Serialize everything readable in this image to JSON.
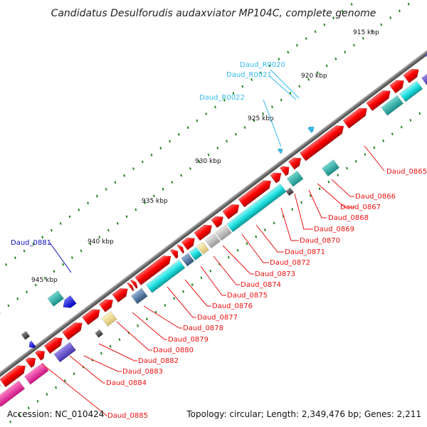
{
  "title": "Candidatus Desulforudis audaxviator MP104C, complete genome",
  "footer": {
    "accession": "Accession: NC_010424",
    "topology": "Topology: circular; Length: 2,349,476 bp; Genes: 2,211"
  },
  "ticks": [
    "915 kbp",
    "920 kbp",
    "925 kbp",
    "930 kbp",
    "935 kbp",
    "940 kbp",
    "945 kbp"
  ],
  "colors": {
    "backbone": "#7a7a7a",
    "cds": "#ff0000",
    "cog_cyan": "#22dddd",
    "rna": "#33bbee",
    "label_red": "#ee1111",
    "label_blue": "#1111bb",
    "label_cyan": "#33bbee",
    "tick_green": "#228822"
  },
  "labels": {
    "rna": [
      "Daud_R0020",
      "Daud_R0021",
      "Daud_R0022"
    ],
    "blue": [
      "Daud_0881"
    ],
    "red": [
      "Daud_0865",
      "Daud_0866",
      "Daud_0867",
      "Daud_0868",
      "Daud_0869",
      "Daud_0870",
      "Daud_0871",
      "Daud_0872",
      "Daud_0873",
      "Daud_0874",
      "Daud_0875",
      "Daud_0876",
      "Daud_0877",
      "Daud_0878",
      "Daud_0879",
      "Daud_0880",
      "Daud_0882",
      "Daud_0883",
      "Daud_0884",
      "Daud_0885"
    ]
  }
}
